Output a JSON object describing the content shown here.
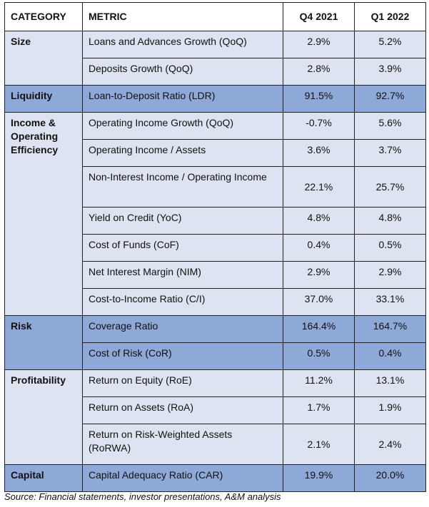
{
  "table": {
    "headers": [
      "CATEGORY",
      "METRIC",
      "Q4 2021",
      "Q1 2022"
    ],
    "categories": [
      {
        "name": "Size",
        "rows": [
          {
            "metric": "Loans and Advances Growth (QoQ)",
            "q4_2021": "2.9%",
            "q1_2022": "5.2%"
          },
          {
            "metric": "Deposits Growth (QoQ)",
            "q4_2021": "2.8%",
            "q1_2022": "3.9%"
          }
        ]
      },
      {
        "name": "Liquidity",
        "rows": [
          {
            "metric": "Loan-to-Deposit Ratio (LDR)",
            "q4_2021": "91.5%",
            "q1_2022": "92.7%"
          }
        ]
      },
      {
        "name": "Income & Operating Efficiency",
        "rows": [
          {
            "metric": "Operating Income Growth (QoQ)",
            "q4_2021": "-0.7%",
            "q1_2022": "5.6%"
          },
          {
            "metric": "Operating Income / Assets",
            "q4_2021": "3.6%",
            "q1_2022": "3.7%"
          },
          {
            "metric": "Non-Interest Income / Operating Income",
            "q4_2021": "22.1%",
            "q1_2022": "25.7%"
          },
          {
            "metric": "Yield on Credit (YoC)",
            "q4_2021": "4.8%",
            "q1_2022": "4.8%"
          },
          {
            "metric": "Cost of Funds (CoF)",
            "q4_2021": "0.4%",
            "q1_2022": "0.5%"
          },
          {
            "metric": "Net Interest Margin (NIM)",
            "q4_2021": "2.9%",
            "q1_2022": "2.9%"
          },
          {
            "metric": "Cost-to-Income Ratio (C/I)",
            "q4_2021": "37.0%",
            "q1_2022": "33.1%"
          }
        ]
      },
      {
        "name": "Risk",
        "rows": [
          {
            "metric": "Coverage Ratio",
            "q4_2021": "164.4%",
            "q1_2022": "164.7%"
          },
          {
            "metric": "Cost of Risk (CoR)",
            "q4_2021": "0.5%",
            "q1_2022": "0.4%"
          }
        ]
      },
      {
        "name": "Profitability",
        "rows": [
          {
            "metric": "Return on Equity (RoE)",
            "q4_2021": "11.2%",
            "q1_2022": "13.1%"
          },
          {
            "metric": "Return on Assets (RoA)",
            "q4_2021": "1.7%",
            "q1_2022": "1.9%"
          },
          {
            "metric": "Return on Risk-Weighted Assets (RoRWA)",
            "q4_2021": "2.1%",
            "q1_2022": "2.4%"
          }
        ]
      },
      {
        "name": "Capital",
        "rows": [
          {
            "metric": "Capital Adequacy Ratio (CAR)",
            "q4_2021": "19.9%",
            "q1_2022": "20.0%"
          }
        ]
      }
    ]
  },
  "source": "Source: Financial statements, investor presentations, A&M analysis",
  "colors": {
    "light_band": "#dde3f1",
    "dark_band": "#8ea8d8"
  }
}
